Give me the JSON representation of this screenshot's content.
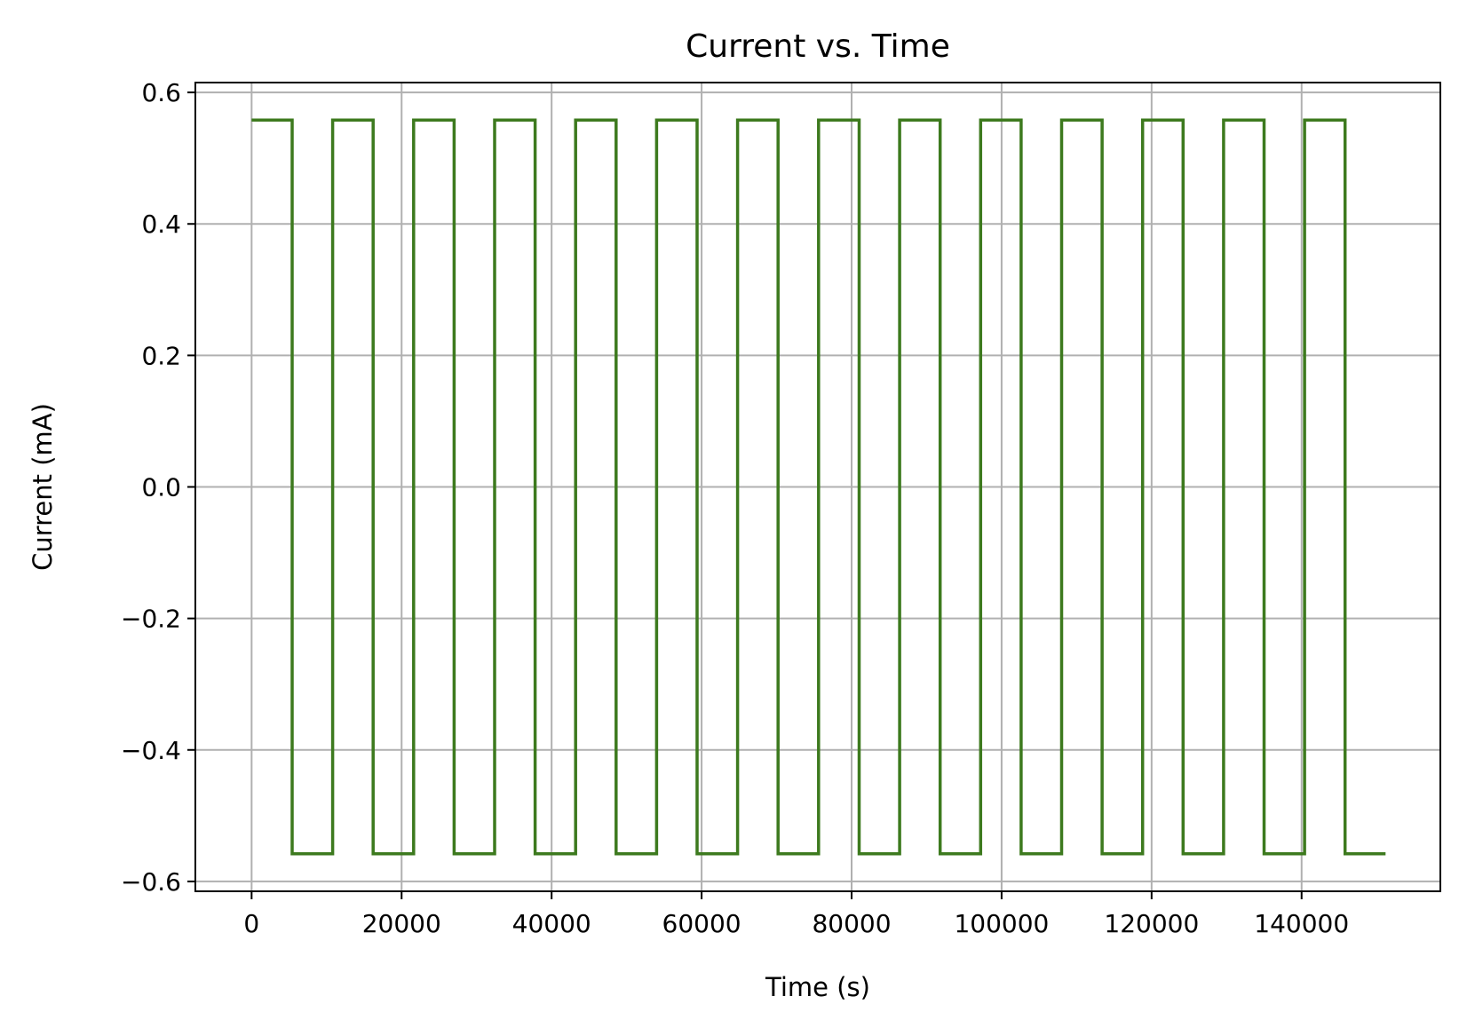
{
  "chart_data": {
    "type": "line",
    "title": "Current vs. Time",
    "xlabel": "Time (s)",
    "ylabel": "Current (mA)",
    "xlim": [
      -7500,
      158500
    ],
    "ylim": [
      -0.615,
      0.615
    ],
    "xticks": [
      0,
      20000,
      40000,
      60000,
      80000,
      100000,
      120000,
      140000
    ],
    "xtick_labels": [
      "0",
      "20000",
      "40000",
      "60000",
      "80000",
      "100000",
      "120000",
      "140000"
    ],
    "yticks": [
      0.6,
      0.4,
      0.2,
      0.0,
      -0.2,
      -0.4,
      -0.6
    ],
    "ytick_labels": [
      "0.6",
      "0.4",
      "0.2",
      "0.0",
      "−0.2",
      "−0.4",
      "−0.6"
    ],
    "grid": true,
    "line_color": "#3d7a1e",
    "series": [
      {
        "x": [
          0,
          5400,
          5400,
          10800,
          10800,
          16200,
          16200,
          21600,
          21600,
          27000,
          27000,
          32400,
          32400,
          37800,
          37800,
          43200,
          43200,
          48600,
          48600,
          54000,
          54000,
          59400,
          59400,
          64800,
          64800,
          70200,
          70200,
          75600,
          75600,
          81000,
          81000,
          86400,
          86400,
          91800,
          91800,
          97200,
          97200,
          102600,
          102600,
          108000,
          108000,
          113400,
          113400,
          118800,
          118800,
          124200,
          124200,
          129600,
          129600,
          135000,
          135000,
          140400,
          140400,
          145800,
          145800,
          151200
        ],
        "y": [
          0.558,
          0.558,
          -0.558,
          -0.558,
          0.558,
          0.558,
          -0.558,
          -0.558,
          0.558,
          0.558,
          -0.558,
          -0.558,
          0.558,
          0.558,
          -0.558,
          -0.558,
          0.558,
          0.558,
          -0.558,
          -0.558,
          0.558,
          0.558,
          -0.558,
          -0.558,
          0.558,
          0.558,
          -0.558,
          -0.558,
          0.558,
          0.558,
          -0.558,
          -0.558,
          0.558,
          0.558,
          -0.558,
          -0.558,
          0.558,
          0.558,
          -0.558,
          -0.558,
          0.558,
          0.558,
          -0.558,
          -0.558,
          0.558,
          0.558,
          -0.558,
          -0.558,
          0.558,
          0.558,
          -0.558,
          -0.558,
          0.558,
          0.558,
          -0.558,
          -0.558
        ]
      }
    ]
  }
}
